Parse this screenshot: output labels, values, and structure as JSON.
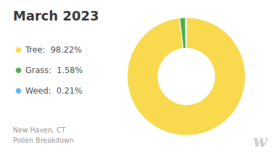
{
  "chart_data": {
    "type": "pie",
    "title": "March 2023",
    "subtitle": "New Haven, CT\nPollen Breakdown",
    "categories": [
      "Tree:  98.22%",
      "Grass:  1.58%",
      "Weed:  0.21%"
    ],
    "values": [
      98.22,
      1.58,
      0.21
    ],
    "colors": [
      "#f9d94e",
      "#4caf50",
      "#64b5f6"
    ],
    "legend": "left",
    "annotations": [
      "w"
    ]
  }
}
